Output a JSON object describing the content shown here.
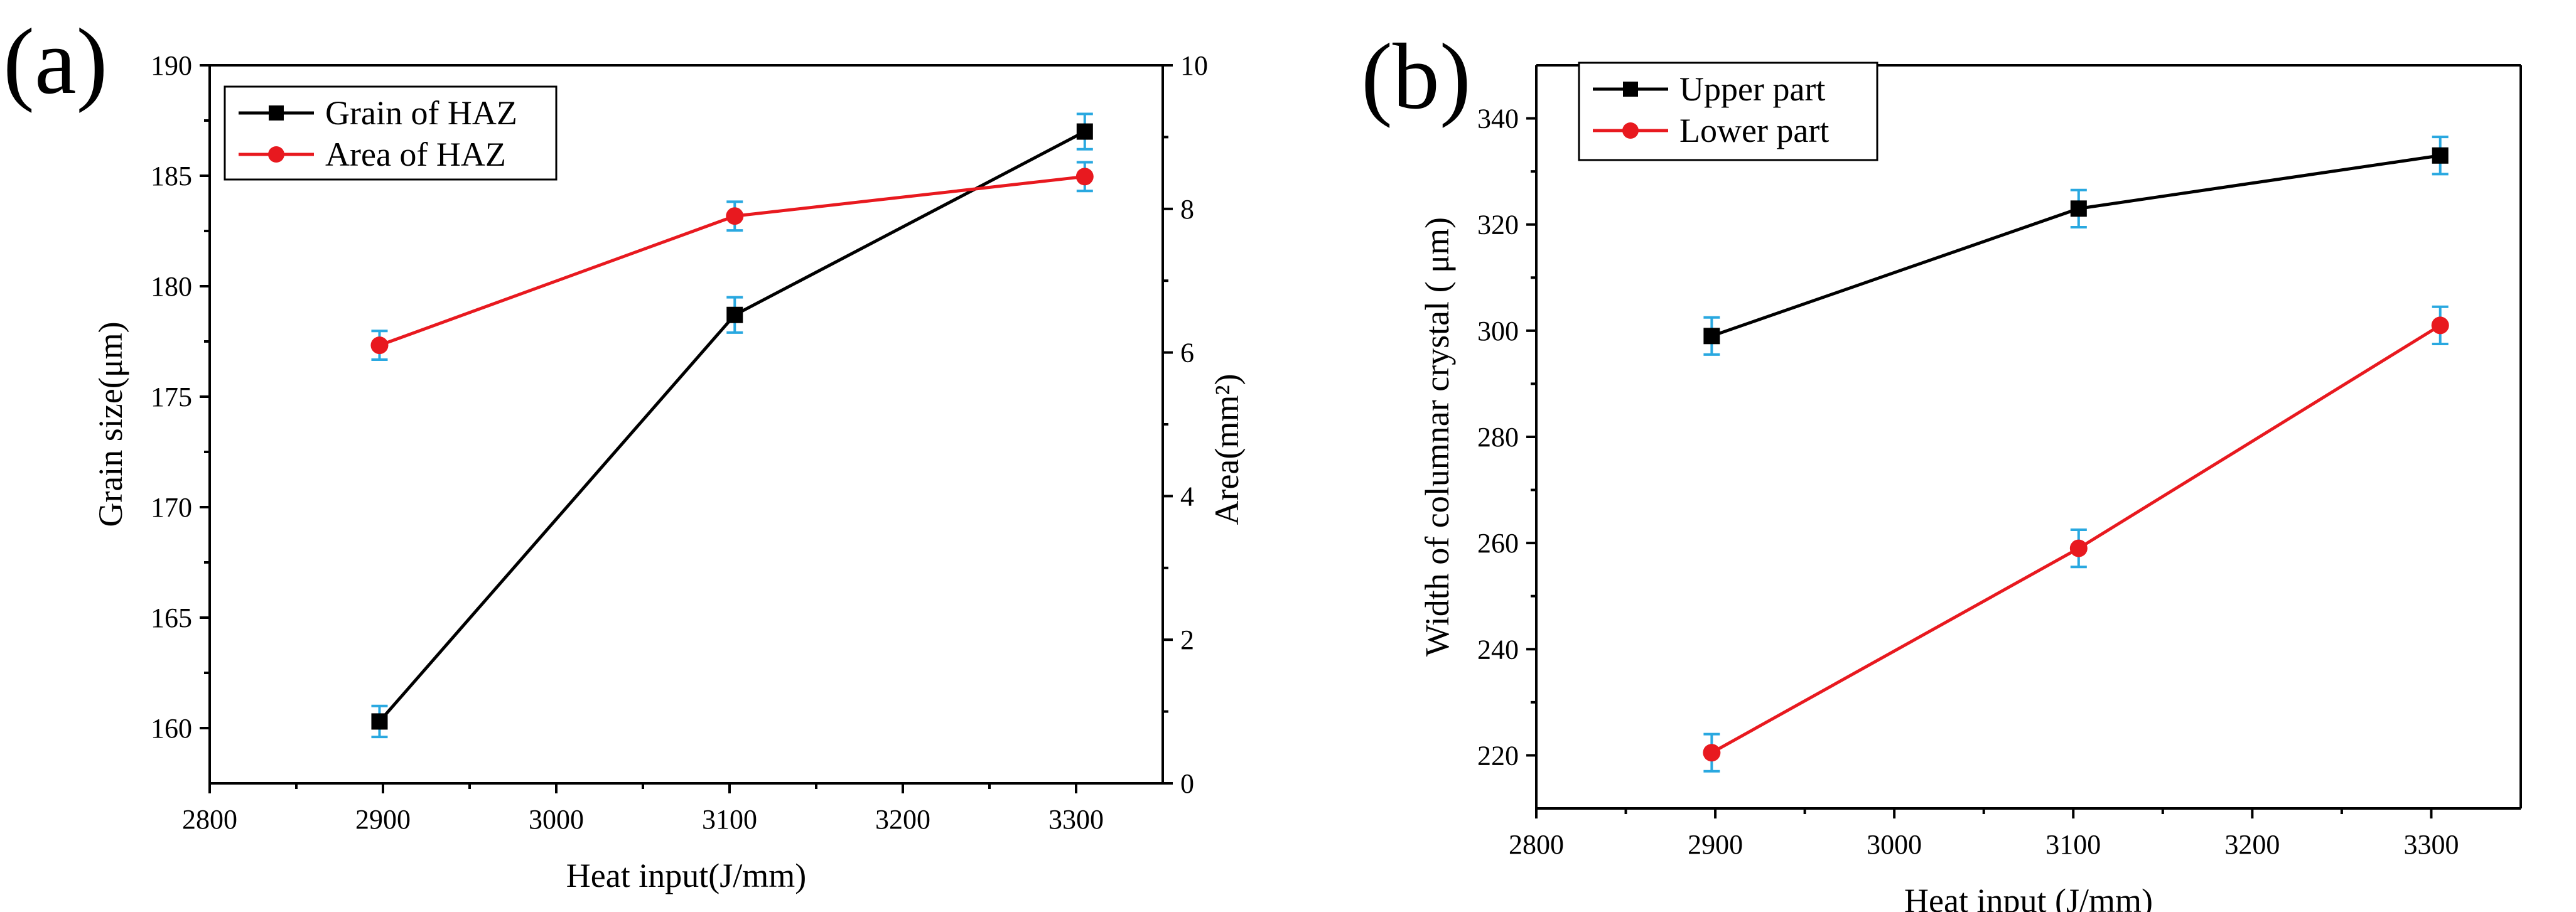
{
  "chart_data": [
    {
      "panel_label": "(a)",
      "type": "line",
      "xlabel": "Heat input(J/mm)",
      "ylabel": "Grain size(μm)",
      "ylabel_right": "Area(mm²)",
      "xlim": [
        2800,
        3350
      ],
      "xticks": [
        2800,
        2900,
        3000,
        3100,
        3200,
        3300
      ],
      "ylim": [
        157.5,
        190
      ],
      "yticks": [
        160,
        165,
        170,
        175,
        180,
        185,
        190
      ],
      "ylim_right": [
        0,
        10
      ],
      "yticks_right": [
        0,
        2,
        4,
        6,
        8,
        10
      ],
      "legend_position": "top-left",
      "series": [
        {
          "name": "Grain of HAZ",
          "color": "#000000",
          "marker": "square",
          "axis": "left",
          "x": [
            2898,
            3103,
            3305
          ],
          "values": [
            160.3,
            178.7,
            187.0
          ],
          "err": [
            0.7,
            0.8,
            0.8
          ]
        },
        {
          "name": "Area of HAZ",
          "color": "#e8191f",
          "marker": "circle",
          "axis": "right",
          "x": [
            2898,
            3103,
            3305
          ],
          "values": [
            6.1,
            7.9,
            8.45
          ],
          "err": [
            0.2,
            0.2,
            0.2
          ]
        }
      ],
      "errorbar_color": "#29a8e0"
    },
    {
      "panel_label": "(b)",
      "type": "line",
      "xlabel": "Heat input (J/mm)",
      "ylabel": "Width of columnar crystal ( μm)",
      "xlim": [
        2800,
        3350
      ],
      "xticks": [
        2800,
        2900,
        3000,
        3100,
        3200,
        3300
      ],
      "ylim": [
        210,
        350
      ],
      "yticks": [
        220,
        240,
        260,
        280,
        300,
        320,
        340
      ],
      "legend_position": "top-left",
      "series": [
        {
          "name": "Upper part",
          "color": "#000000",
          "marker": "square",
          "x": [
            2898,
            3103,
            3305
          ],
          "values": [
            299,
            323,
            333
          ],
          "err": [
            3.5,
            3.5,
            3.5
          ]
        },
        {
          "name": "Lower part",
          "color": "#e8191f",
          "marker": "circle",
          "x": [
            2898,
            3103,
            3305
          ],
          "values": [
            220.5,
            259,
            301
          ],
          "err": [
            3.5,
            3.5,
            3.5
          ]
        }
      ],
      "errorbar_color": "#29a8e0"
    }
  ]
}
